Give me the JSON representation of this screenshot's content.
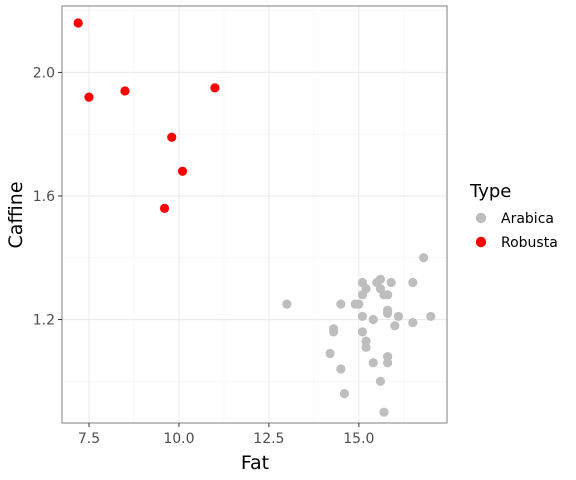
{
  "chart_data": {
    "type": "scatter",
    "xlabel": "Fat",
    "ylabel": "Caffine",
    "xlim": [
      6.75,
      17.45
    ],
    "ylim": [
      0.865,
      2.215
    ],
    "xticks": [
      7.5,
      10.0,
      12.5,
      15.0
    ],
    "xtick_labels": [
      "7.5",
      "10.0",
      "12.5",
      "15.0"
    ],
    "yticks": [
      1.2,
      1.6,
      2.0
    ],
    "ytick_labels": [
      "1.2",
      "1.6",
      "2.0"
    ],
    "grid": true,
    "legend": {
      "title": "Type",
      "position": "right"
    },
    "series": [
      {
        "name": "Arabica",
        "color": "#bebebe",
        "points": [
          [
            13.0,
            1.25
          ],
          [
            14.2,
            1.09
          ],
          [
            14.3,
            1.17
          ],
          [
            14.3,
            1.16
          ],
          [
            14.5,
            1.04
          ],
          [
            14.5,
            1.25
          ],
          [
            14.6,
            0.96
          ],
          [
            14.9,
            1.25
          ],
          [
            15.0,
            1.25
          ],
          [
            15.1,
            1.32
          ],
          [
            15.1,
            1.28
          ],
          [
            15.1,
            1.21
          ],
          [
            15.1,
            1.16
          ],
          [
            15.2,
            1.3
          ],
          [
            15.2,
            1.13
          ],
          [
            15.2,
            1.11
          ],
          [
            15.4,
            1.2
          ],
          [
            15.4,
            1.06
          ],
          [
            15.5,
            1.32
          ],
          [
            15.6,
            1.33
          ],
          [
            15.6,
            1.3
          ],
          [
            15.6,
            1.0
          ],
          [
            15.7,
            1.28
          ],
          [
            15.7,
            0.9
          ],
          [
            15.8,
            1.28
          ],
          [
            15.8,
            1.23
          ],
          [
            15.8,
            1.22
          ],
          [
            15.8,
            1.08
          ],
          [
            15.8,
            1.06
          ],
          [
            15.9,
            1.32
          ],
          [
            16.0,
            1.18
          ],
          [
            16.1,
            1.21
          ],
          [
            16.5,
            1.32
          ],
          [
            16.5,
            1.19
          ],
          [
            16.8,
            1.4
          ],
          [
            17.0,
            1.21
          ]
        ]
      },
      {
        "name": "Robusta",
        "color": "#ff0000",
        "points": [
          [
            7.2,
            2.16
          ],
          [
            7.5,
            1.92
          ],
          [
            8.5,
            1.94
          ],
          [
            9.6,
            1.56
          ],
          [
            9.8,
            1.79
          ],
          [
            10.1,
            1.68
          ],
          [
            11.0,
            1.95
          ]
        ]
      }
    ]
  },
  "style": {
    "panel_border": "#7f7f7f",
    "grid_major": "#ebebeb",
    "grid_minor": "#f5f5f5",
    "tick_color": "#333333"
  }
}
